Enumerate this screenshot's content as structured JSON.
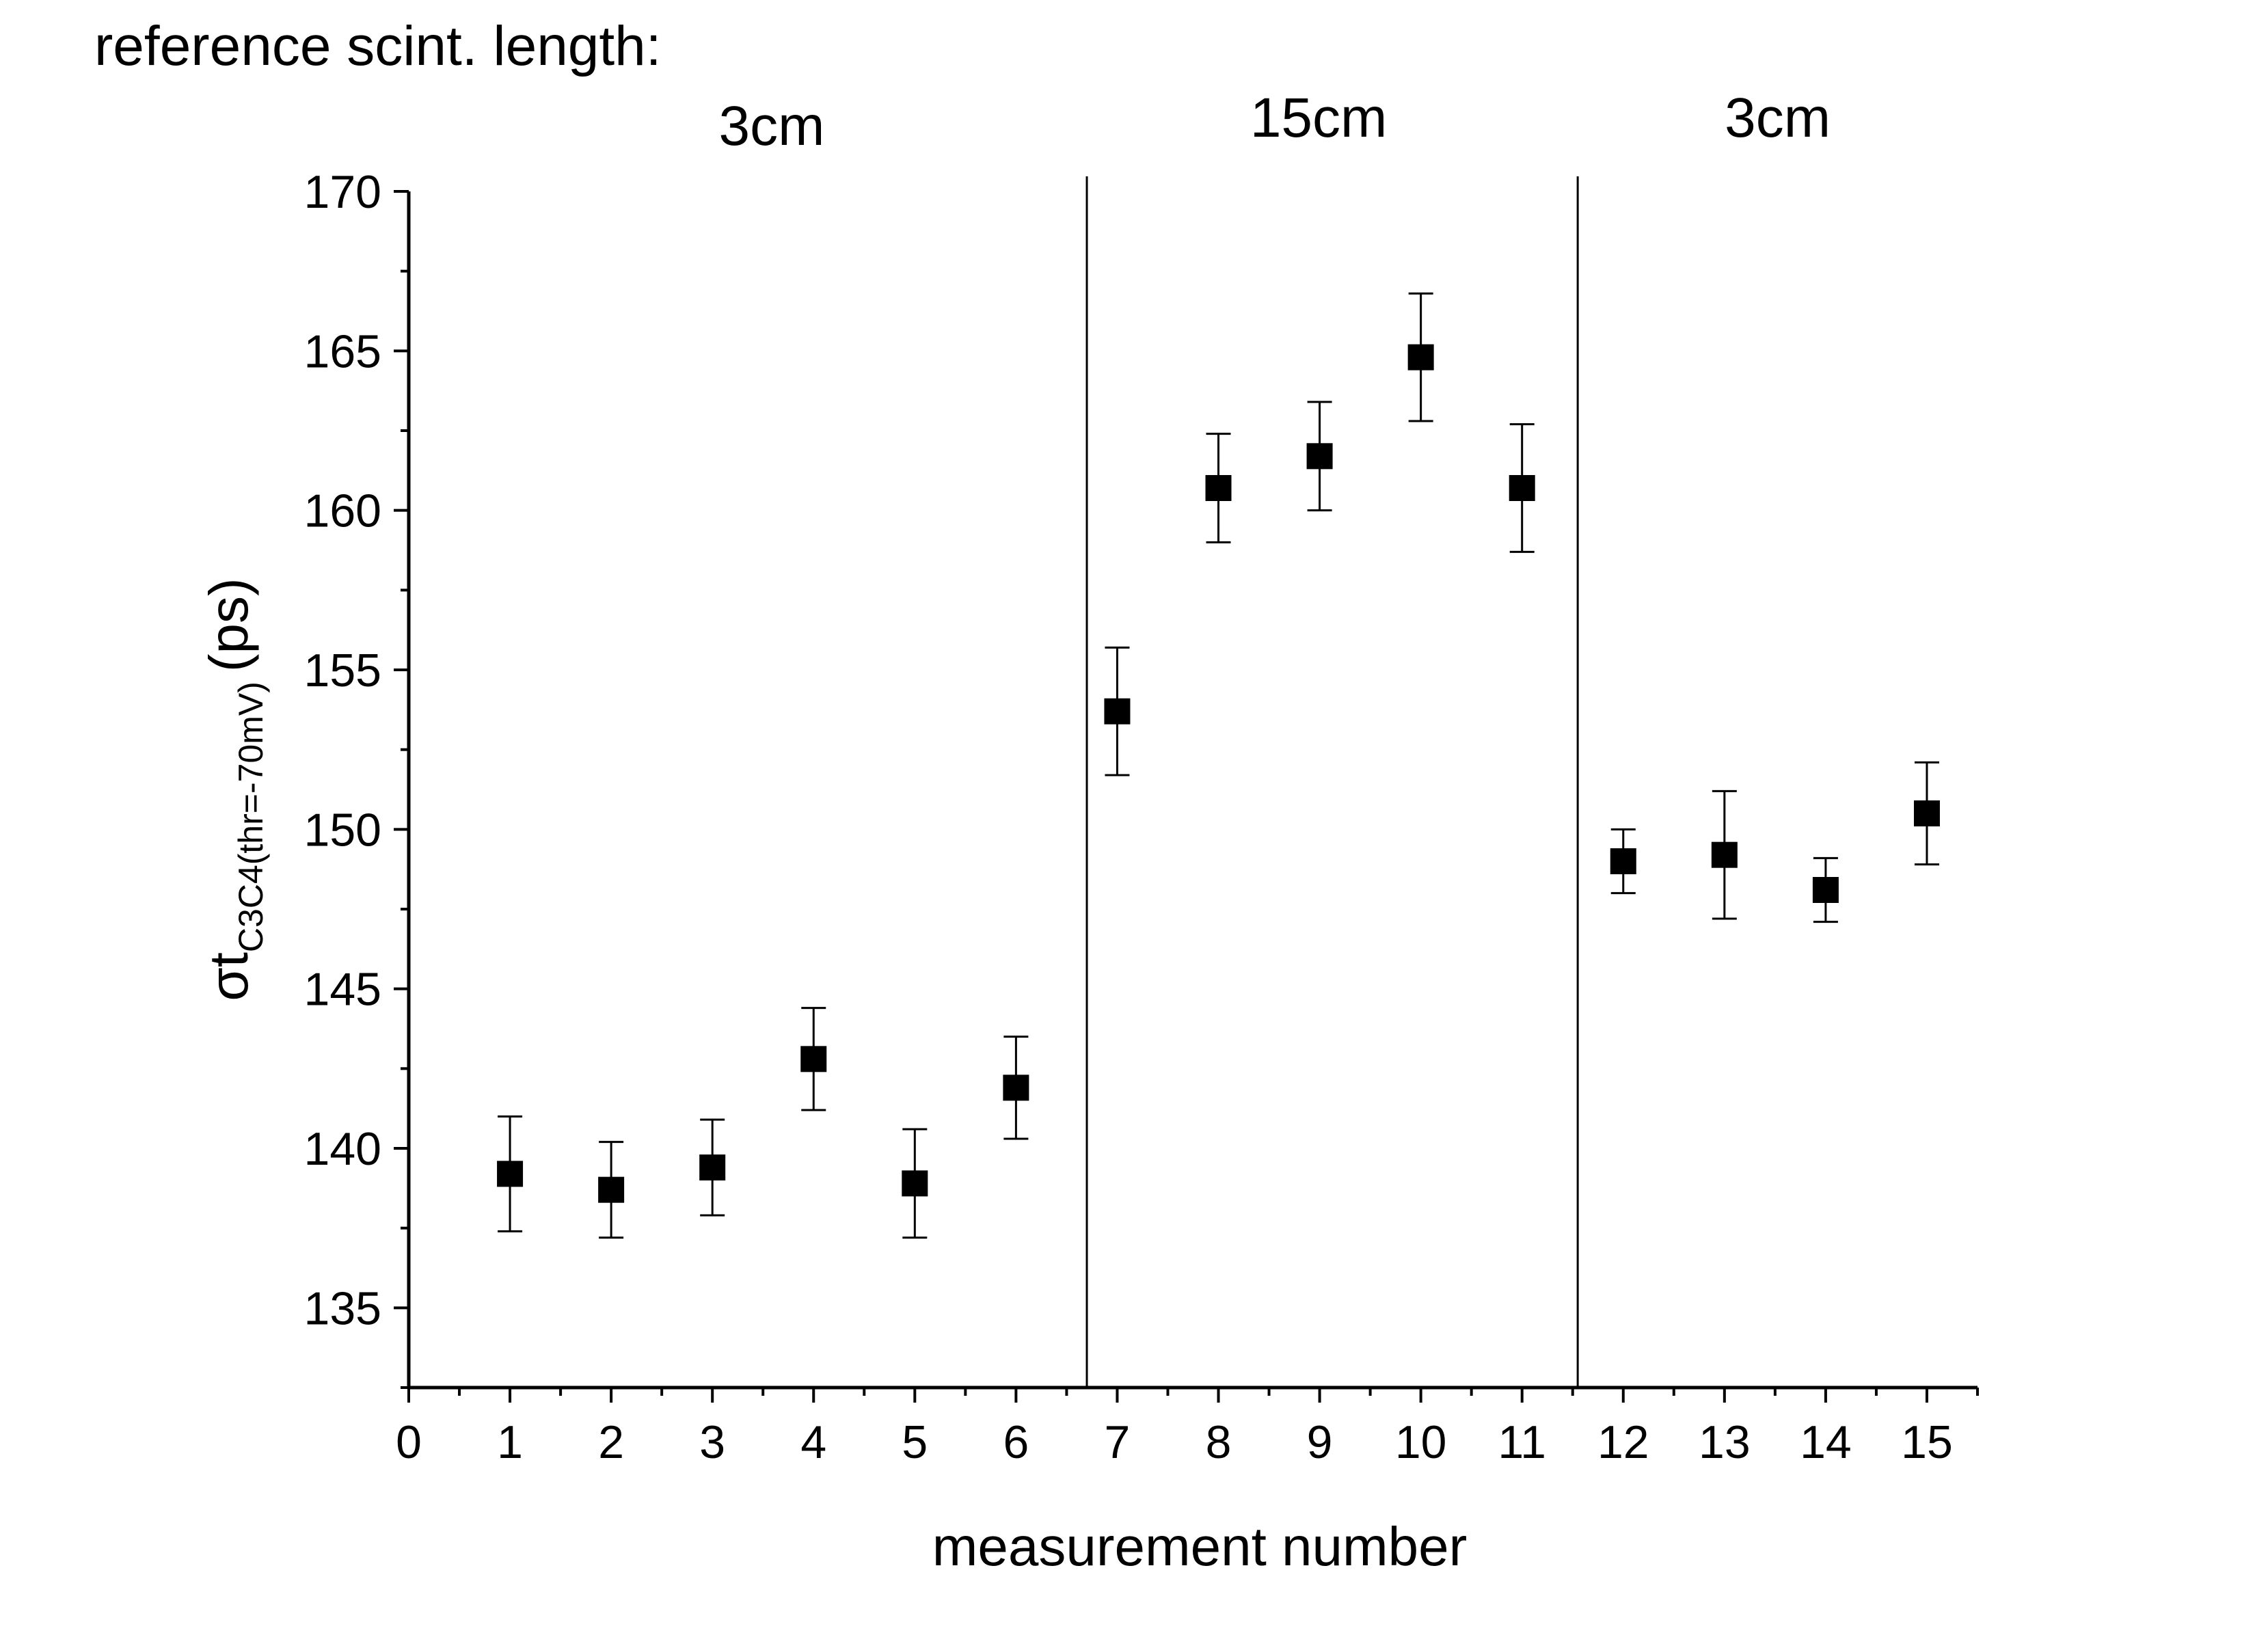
{
  "chart_data": {
    "type": "scatter",
    "caption": "reference scint. length:",
    "xlabel": "measurement number",
    "ylabel": {
      "main": "σt",
      "subscript": "C3C4(thr=-70mV)",
      "unit": "(ps)"
    },
    "xlim": [
      0,
      15.5
    ],
    "ylim": [
      132.5,
      170
    ],
    "xticks": [
      "0",
      "1",
      "2",
      "3",
      "4",
      "5",
      "6",
      "7",
      "8",
      "9",
      "10",
      "11",
      "12",
      "13",
      "14",
      "15"
    ],
    "yticks": [
      "135",
      "140",
      "145",
      "150",
      "155",
      "160",
      "165",
      "170"
    ],
    "grid": false,
    "legend": "none",
    "marker": "filled-square",
    "color": "#000000",
    "regions": [
      {
        "label": "3cm"
      },
      {
        "label": "15cm"
      },
      {
        "label": "3cm"
      }
    ],
    "separators": [
      6.7,
      11.55
    ],
    "series": [
      {
        "points": [
          {
            "x": 1,
            "y": 139.2,
            "lo": 137.4,
            "hi": 141.0
          },
          {
            "x": 2,
            "y": 138.7,
            "lo": 137.2,
            "hi": 140.2
          },
          {
            "x": 3,
            "y": 139.4,
            "lo": 137.9,
            "hi": 140.9
          },
          {
            "x": 4,
            "y": 142.8,
            "lo": 141.2,
            "hi": 144.4
          },
          {
            "x": 5,
            "y": 138.9,
            "lo": 137.2,
            "hi": 140.6
          },
          {
            "x": 6,
            "y": 141.9,
            "lo": 140.3,
            "hi": 143.5
          },
          {
            "x": 7,
            "y": 153.7,
            "lo": 151.7,
            "hi": 155.7
          },
          {
            "x": 8,
            "y": 160.7,
            "lo": 159.0,
            "hi": 162.4
          },
          {
            "x": 9,
            "y": 161.7,
            "lo": 160.0,
            "hi": 163.4
          },
          {
            "x": 10,
            "y": 164.8,
            "lo": 162.8,
            "hi": 166.8
          },
          {
            "x": 11,
            "y": 160.7,
            "lo": 158.7,
            "hi": 162.7
          },
          {
            "x": 12,
            "y": 149.0,
            "lo": 148.0,
            "hi": 150.0
          },
          {
            "x": 13,
            "y": 149.2,
            "lo": 147.2,
            "hi": 151.2
          },
          {
            "x": 14,
            "y": 148.1,
            "lo": 147.1,
            "hi": 149.1
          },
          {
            "x": 15,
            "y": 150.5,
            "lo": 148.9,
            "hi": 152.1
          }
        ]
      }
    ]
  }
}
